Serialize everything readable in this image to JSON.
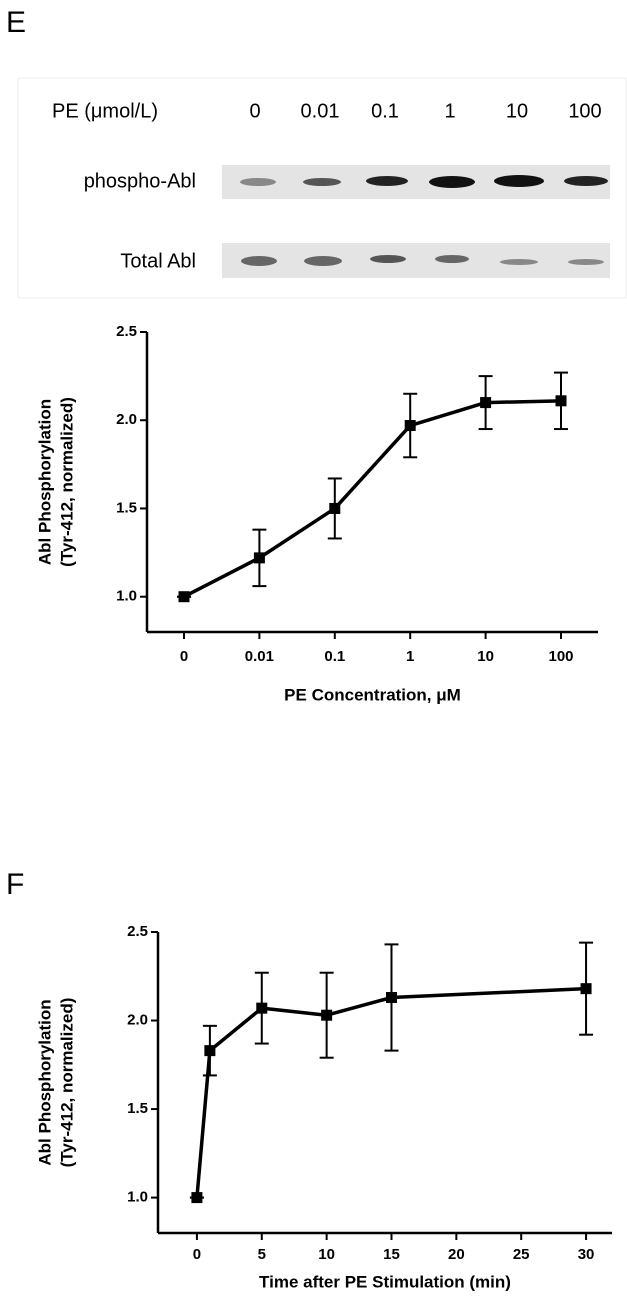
{
  "panels": [
    {
      "label": "E"
    },
    {
      "label": "F"
    }
  ],
  "blot": {
    "header": "PE (μmol/L)",
    "lanes": [
      "0",
      "0.01",
      "0.1",
      "1",
      "10",
      "100"
    ],
    "rows": [
      "phospho-Abl",
      "Total Abl"
    ]
  },
  "chart_data": [
    {
      "type": "line",
      "ylabel": [
        "Abl Phosphorylation",
        "(Tyr-412, normalized)"
      ],
      "xlabel": "PE Concentration, μM",
      "categories": [
        "0",
        "0.01",
        "0.1",
        "1",
        "10",
        "100"
      ],
      "values": [
        1.0,
        1.22,
        1.5,
        1.97,
        2.1,
        2.11
      ],
      "errors": [
        0,
        0.16,
        0.17,
        0.18,
        0.15,
        0.16
      ],
      "color": "#000000",
      "ylim": [
        0.8,
        2.5
      ],
      "yticks": [
        {
          "value": 1,
          "label": "1.0"
        },
        {
          "value": 1.5,
          "label": "1.5"
        },
        {
          "value": 2,
          "label": "2.0"
        },
        {
          "value": 2.5,
          "label": "2.5"
        }
      ]
    },
    {
      "type": "line",
      "ylabel": [
        "Abl Phosphorylation",
        "(Tyr-412, normalized)"
      ],
      "xlabel": "Time after PE Stimulation (min)",
      "x": [
        0,
        1,
        5,
        10,
        15,
        30
      ],
      "values": [
        1.0,
        1.83,
        2.07,
        2.03,
        2.13,
        2.18
      ],
      "errors": [
        0,
        0.14,
        0.2,
        0.24,
        0.3,
        0.26
      ],
      "color": "#000000",
      "xlim": [
        -3,
        32
      ],
      "xticks": [
        0,
        5,
        10,
        15,
        20,
        25,
        30
      ],
      "ylim": [
        0.8,
        2.5
      ],
      "yticks": [
        {
          "value": 1,
          "label": "1.0"
        },
        {
          "value": 1.5,
          "label": "1.5"
        },
        {
          "value": 2,
          "label": "2.0"
        },
        {
          "value": 2.5,
          "label": "2.5"
        }
      ]
    }
  ]
}
